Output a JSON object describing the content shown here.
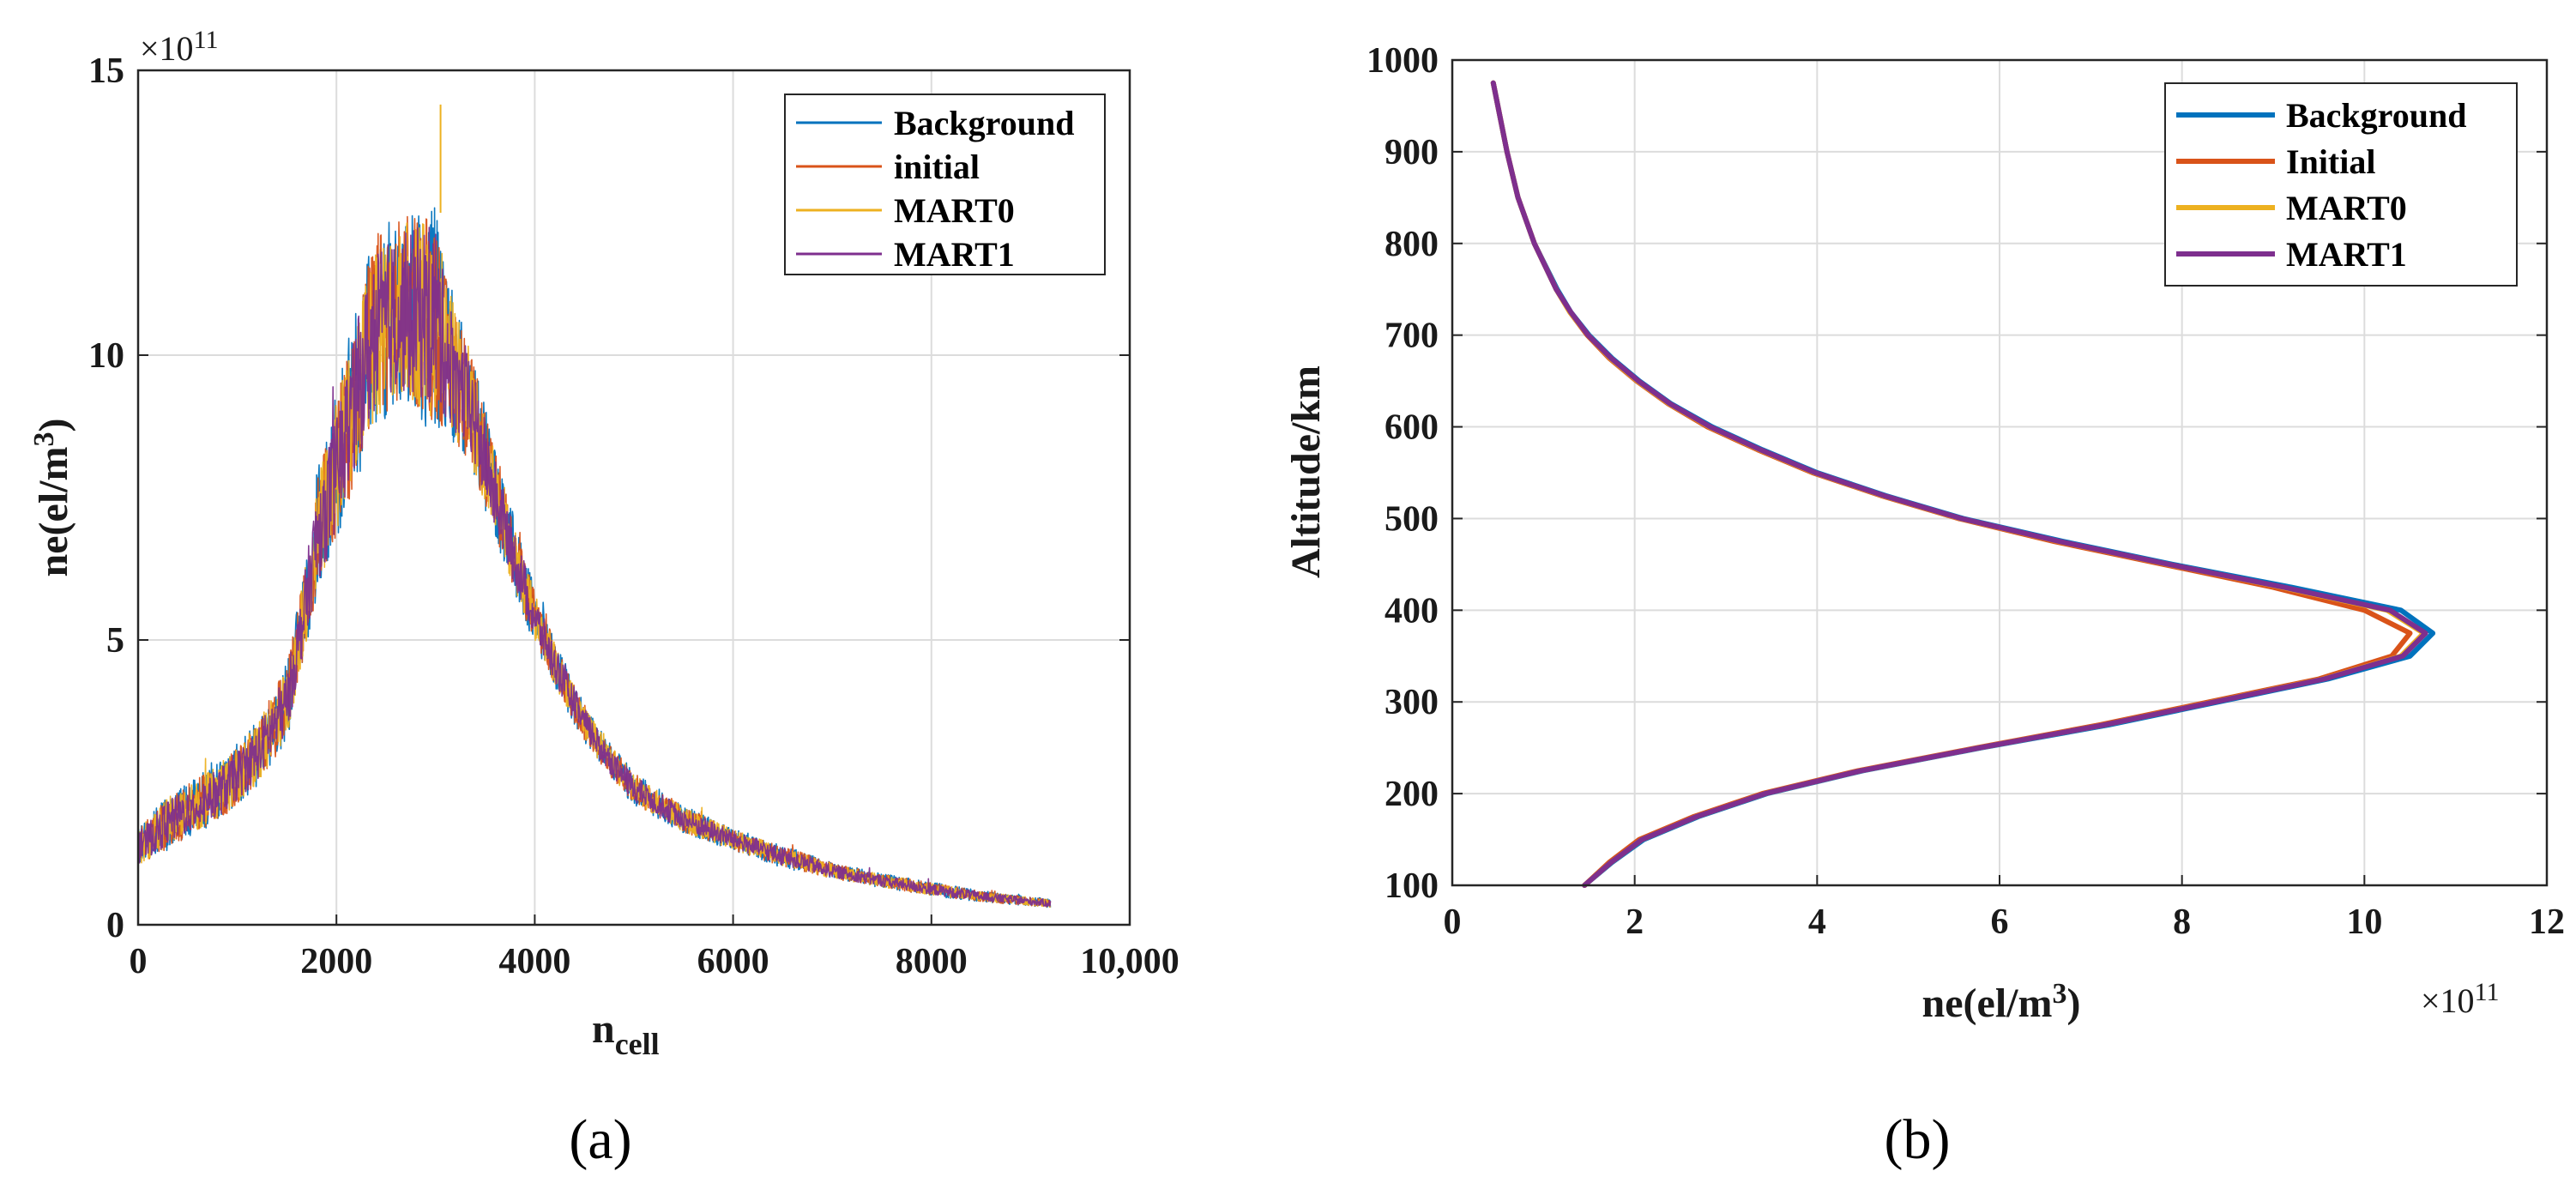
{
  "chart_data": [
    {
      "id": "a",
      "type": "line",
      "caption": "(a)",
      "xlabel": "n",
      "xlabel_sub": "cell",
      "ylabel": "ne(el/m",
      "ylabel_sup": "3",
      "ylabel_end": ")",
      "multiplier_prefix": "×10",
      "multiplier_exp": "11",
      "xlim": [
        0,
        10000
      ],
      "ylim": [
        0,
        15
      ],
      "xticks": [
        0,
        2000,
        4000,
        6000,
        8000,
        10000
      ],
      "xtick_labels": [
        "0",
        "2000",
        "4000",
        "6000",
        "8000",
        "10,000"
      ],
      "yticks": [
        0,
        5,
        10,
        15
      ],
      "ytick_labels": [
        "0",
        "5",
        "10",
        "15"
      ],
      "grid": true,
      "legend_position": "top-right",
      "series": [
        {
          "name": "Background",
          "color": "#0072BD"
        },
        {
          "name": "initial",
          "color": "#D95319"
        },
        {
          "name": "MART0",
          "color": "#EDB120"
        },
        {
          "name": "MART1",
          "color": "#7E2F8E"
        }
      ],
      "envelope": {
        "x": [
          0,
          300,
          600,
          900,
          1200,
          1500,
          1650,
          1800,
          2050,
          2250,
          2400,
          2600,
          2800,
          3000,
          3100,
          3350,
          3550,
          3800,
          4000,
          4250,
          4500,
          4750,
          5000,
          5500,
          6000,
          6500,
          7000,
          7500,
          8000,
          8500,
          9200
        ],
        "low": [
          1.0,
          1.3,
          1.6,
          1.9,
          2.4,
          3.2,
          4.5,
          5.7,
          6.9,
          8.0,
          8.7,
          9.0,
          8.9,
          8.6,
          8.6,
          8.0,
          7.0,
          5.8,
          4.9,
          4.0,
          3.2,
          2.6,
          2.1,
          1.6,
          1.3,
          1.0,
          0.8,
          0.65,
          0.5,
          0.4,
          0.3
        ],
        "high": [
          1.7,
          2.3,
          2.6,
          3.0,
          3.6,
          4.6,
          6.0,
          7.9,
          9.7,
          11.3,
          12.3,
          12.5,
          12.7,
          12.9,
          11.5,
          10.2,
          8.7,
          7.1,
          5.9,
          4.8,
          3.9,
          3.2,
          2.7,
          2.1,
          1.7,
          1.4,
          1.1,
          0.9,
          0.75,
          0.6,
          0.45
        ]
      },
      "peak": {
        "x": 3050,
        "y": 14.4
      }
    },
    {
      "id": "b",
      "type": "line",
      "caption": "(b)",
      "xlabel": "ne(el/m",
      "xlabel_sup": "3",
      "xlabel_end": ")",
      "ylabel": "Altitude/km",
      "multiplier_prefix": "×10",
      "multiplier_exp": "11",
      "xlim": [
        0,
        12
      ],
      "ylim": [
        100,
        1000
      ],
      "xticks": [
        0,
        2,
        4,
        6,
        8,
        10,
        12
      ],
      "xtick_labels": [
        "0",
        "2",
        "4",
        "6",
        "8",
        "10",
        "12"
      ],
      "yticks": [
        100,
        200,
        300,
        400,
        500,
        600,
        700,
        800,
        900,
        1000
      ],
      "ytick_labels": [
        "100",
        "200",
        "300",
        "400",
        "500",
        "600",
        "700",
        "800",
        "900",
        "1000"
      ],
      "grid": true,
      "legend_position": "top-right",
      "altitude": [
        100,
        125,
        150,
        175,
        200,
        225,
        250,
        275,
        300,
        325,
        350,
        375,
        400,
        425,
        450,
        475,
        500,
        525,
        550,
        575,
        600,
        625,
        650,
        675,
        700,
        725,
        750,
        800,
        850,
        900,
        975
      ],
      "series": [
        {
          "name": "Background",
          "color": "#0072BD",
          "values": [
            1.45,
            1.75,
            2.1,
            2.7,
            3.45,
            4.5,
            5.8,
            7.2,
            8.4,
            9.6,
            10.5,
            10.75,
            10.4,
            9.2,
            7.9,
            6.7,
            5.6,
            4.75,
            4.0,
            3.4,
            2.85,
            2.4,
            2.05,
            1.75,
            1.5,
            1.3,
            1.15,
            0.9,
            0.72,
            0.6,
            0.45
          ]
        },
        {
          "name": "Initial",
          "color": "#D95319",
          "values": [
            1.45,
            1.72,
            2.05,
            2.65,
            3.4,
            4.45,
            5.75,
            7.1,
            8.3,
            9.5,
            10.3,
            10.5,
            10.0,
            9.0,
            7.8,
            6.6,
            5.55,
            4.7,
            3.95,
            3.35,
            2.8,
            2.37,
            2.02,
            1.72,
            1.48,
            1.29,
            1.14,
            0.9,
            0.72,
            0.6,
            0.45
          ]
        },
        {
          "name": "MART0",
          "color": "#EDB120",
          "values": [
            1.45,
            1.74,
            2.08,
            2.68,
            3.43,
            4.48,
            5.78,
            7.15,
            8.35,
            9.55,
            10.4,
            10.65,
            10.25,
            9.1,
            7.85,
            6.65,
            5.57,
            4.72,
            3.97,
            3.37,
            2.82,
            2.38,
            2.03,
            1.73,
            1.49,
            1.29,
            1.14,
            0.9,
            0.72,
            0.6,
            0.45
          ]
        },
        {
          "name": "MART1",
          "color": "#7E2F8E",
          "values": [
            1.45,
            1.74,
            2.08,
            2.68,
            3.43,
            4.48,
            5.78,
            7.15,
            8.36,
            9.56,
            10.42,
            10.67,
            10.28,
            9.12,
            7.86,
            6.66,
            5.58,
            4.73,
            3.98,
            3.38,
            2.83,
            2.39,
            2.04,
            1.74,
            1.49,
            1.3,
            1.14,
            0.9,
            0.72,
            0.6,
            0.45
          ]
        }
      ]
    }
  ]
}
